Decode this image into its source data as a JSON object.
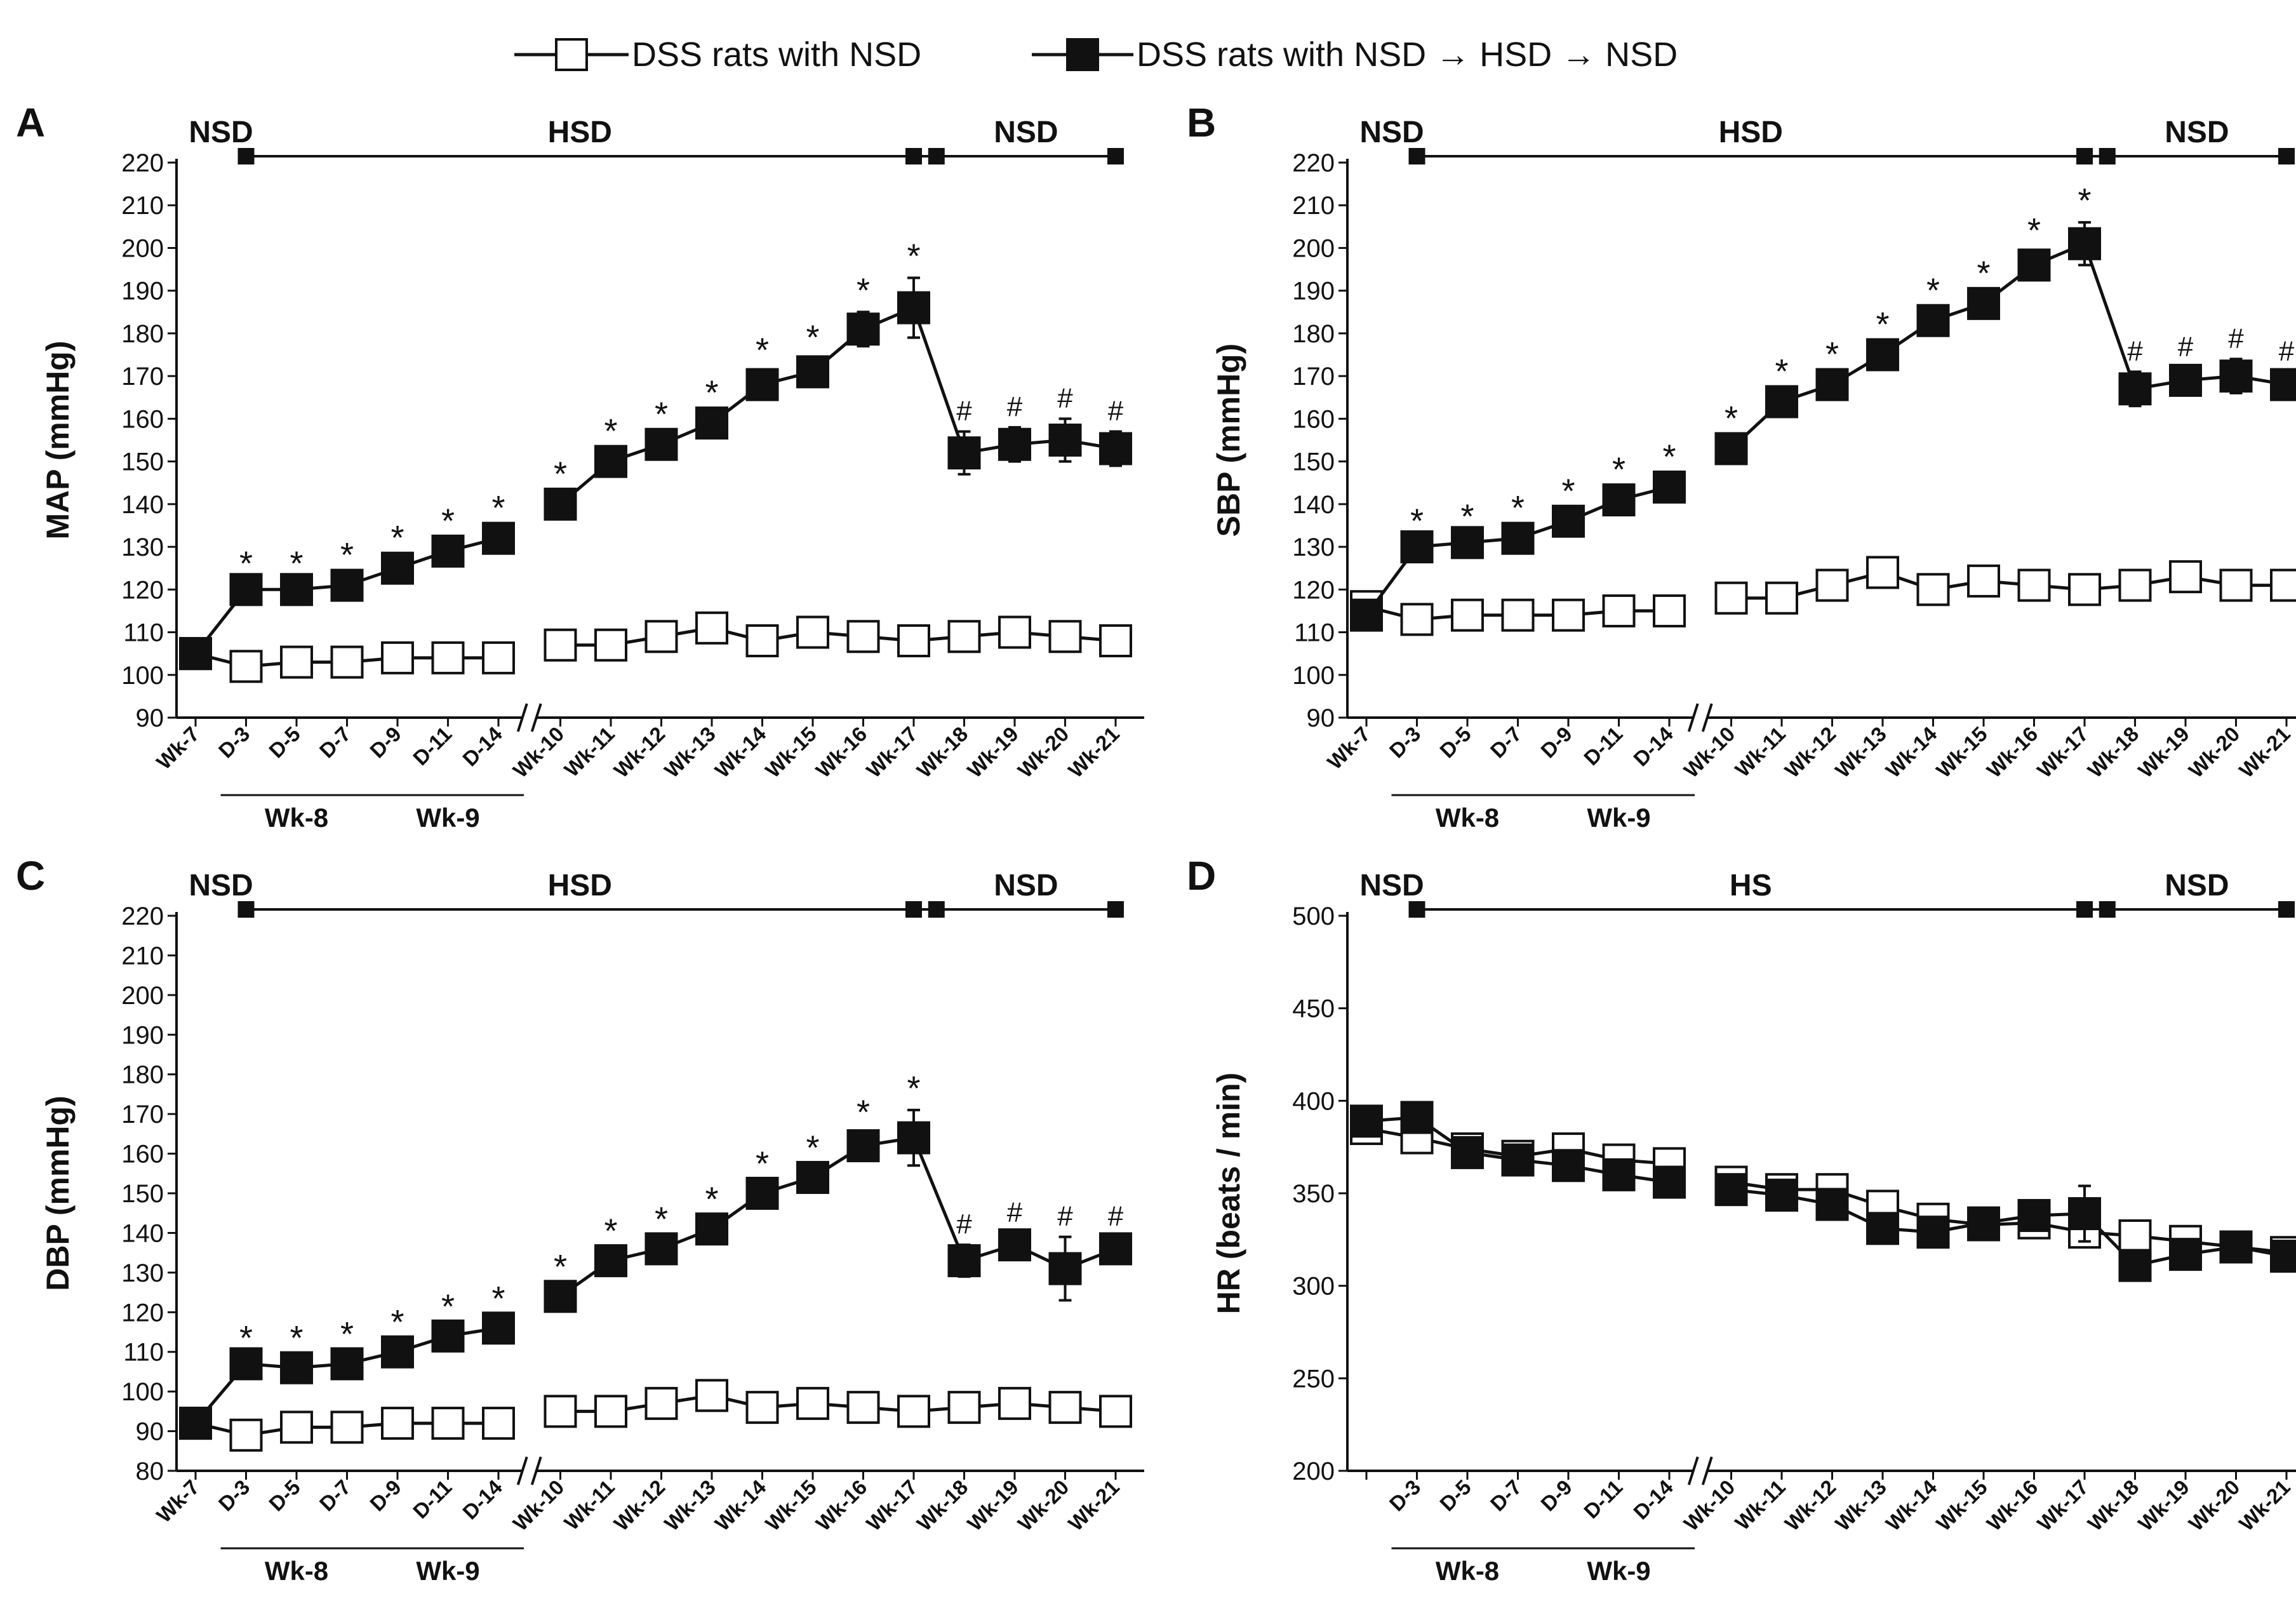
{
  "legend": {
    "normal_diet_label": "DSS rats with NSD",
    "switched_diet_label": "DSS rats with NSD → HSD → NSD"
  },
  "chart_data": [
    {
      "type": "line",
      "panel": "A",
      "ylabel": "MAP (mmHg)",
      "ylim": [
        90,
        220
      ],
      "yticks": [
        90,
        100,
        110,
        120,
        130,
        140,
        150,
        160,
        170,
        180,
        190,
        200,
        210,
        220
      ],
      "categories": [
        "Wk-7",
        "D-3",
        "D-5",
        "D-7",
        "D-9",
        "D-11",
        "D-14",
        "Wk-10",
        "Wk-11",
        "Wk-12",
        "Wk-13",
        "Wk-14",
        "Wk-15",
        "Wk-16",
        "Wk-17",
        "Wk-18",
        "Wk-19",
        "Wk-20",
        "Wk-21"
      ],
      "groups": [
        {
          "label": "Wk-8",
          "from": 1,
          "to": 3
        },
        {
          "label": "Wk-9",
          "from": 4,
          "to": 6
        }
      ],
      "axis_break_after": 6,
      "series": [
        {
          "name": "DSS rats with NSD",
          "values": [
            105,
            102,
            103,
            103,
            104,
            104,
            104,
            107,
            107,
            109,
            111,
            108,
            110,
            109,
            108,
            109,
            110,
            109,
            108
          ],
          "errors": [
            0,
            1,
            1,
            1,
            1,
            1,
            1,
            1,
            1,
            1,
            1,
            1,
            1,
            1,
            1,
            1,
            1,
            1,
            1
          ]
        },
        {
          "name": "DSS rats with NSD → HSD → NSD",
          "values": [
            105,
            120,
            120,
            121,
            125,
            129,
            132,
            140,
            150,
            154,
            159,
            168,
            171,
            181,
            186,
            152,
            154,
            155,
            153
          ],
          "errors": [
            0,
            1,
            1,
            2,
            2,
            2,
            2,
            2,
            2,
            2,
            2,
            3,
            3,
            4,
            7,
            5,
            4,
            5,
            4
          ]
        }
      ],
      "significance": [
        "",
        "*",
        "*",
        "*",
        "*",
        "*",
        "*",
        "*",
        "*",
        "*",
        "*",
        "*",
        "*",
        "*",
        "*",
        "#",
        "#",
        "#",
        "#"
      ],
      "diet_phases": [
        {
          "label": "NSD"
        },
        {
          "label": "HSD"
        },
        {
          "label": "NSD"
        }
      ]
    },
    {
      "type": "line",
      "panel": "B",
      "ylabel": "SBP (mmHg)",
      "ylim": [
        90,
        220
      ],
      "yticks": [
        90,
        100,
        110,
        120,
        130,
        140,
        150,
        160,
        170,
        180,
        190,
        200,
        210,
        220
      ],
      "categories": [
        "Wk-7",
        "D-3",
        "D-5",
        "D-7",
        "D-9",
        "D-11",
        "D-14",
        "Wk-10",
        "Wk-11",
        "Wk-12",
        "Wk-13",
        "Wk-14",
        "Wk-15",
        "Wk-16",
        "Wk-17",
        "Wk-18",
        "Wk-19",
        "Wk-20",
        "Wk-21"
      ],
      "groups": [
        {
          "label": "Wk-8",
          "from": 1,
          "to": 3
        },
        {
          "label": "Wk-9",
          "from": 4,
          "to": 6
        }
      ],
      "axis_break_after": 6,
      "series": [
        {
          "name": "DSS rats with NSD",
          "values": [
            116,
            113,
            114,
            114,
            114,
            115,
            115,
            118,
            118,
            121,
            124,
            120,
            122,
            121,
            120,
            121,
            123,
            121,
            121
          ],
          "errors": [
            1,
            1,
            1,
            1,
            1,
            1,
            1,
            1,
            1,
            1,
            1,
            1,
            1,
            1,
            1,
            1,
            1,
            1,
            1
          ]
        },
        {
          "name": "DSS rats with NSD → HSD → NSD",
          "values": [
            114,
            130,
            131,
            132,
            136,
            141,
            144,
            153,
            164,
            168,
            175,
            183,
            187,
            196,
            201,
            167,
            169,
            170,
            168
          ],
          "errors": [
            1,
            1,
            1,
            2,
            2,
            2,
            2,
            2,
            2,
            2,
            2,
            2,
            2,
            3,
            5,
            4,
            3,
            4,
            3
          ]
        }
      ],
      "significance": [
        "",
        "*",
        "*",
        "*",
        "*",
        "*",
        "*",
        "*",
        "*",
        "*",
        "*",
        "*",
        "*",
        "*",
        "*",
        "#",
        "#",
        "#",
        "#"
      ],
      "diet_phases": [
        {
          "label": "NSD"
        },
        {
          "label": "HSD"
        },
        {
          "label": "NSD"
        }
      ]
    },
    {
      "type": "line",
      "panel": "C",
      "ylabel": "DBP (mmHg)",
      "ylim": [
        80,
        220
      ],
      "yticks": [
        80,
        90,
        100,
        110,
        120,
        130,
        140,
        150,
        160,
        170,
        180,
        190,
        200,
        210,
        220
      ],
      "categories": [
        "Wk-7",
        "D-3",
        "D-5",
        "D-7",
        "D-9",
        "D-11",
        "D-14",
        "Wk-10",
        "Wk-11",
        "Wk-12",
        "Wk-13",
        "Wk-14",
        "Wk-15",
        "Wk-16",
        "Wk-17",
        "Wk-18",
        "Wk-19",
        "Wk-20",
        "Wk-21"
      ],
      "groups": [
        {
          "label": "Wk-8",
          "from": 1,
          "to": 3
        },
        {
          "label": "Wk-9",
          "from": 4,
          "to": 6
        }
      ],
      "axis_break_after": 6,
      "series": [
        {
          "name": "DSS rats with NSD",
          "values": [
            92,
            89,
            91,
            91,
            92,
            92,
            92,
            95,
            95,
            97,
            99,
            96,
            97,
            96,
            95,
            96,
            97,
            96,
            95
          ],
          "errors": [
            1,
            1,
            1,
            1,
            1,
            1,
            1,
            1,
            1,
            1,
            1,
            1,
            1,
            1,
            1,
            1,
            1,
            1,
            1
          ]
        },
        {
          "name": "DSS rats with NSD → HSD → NSD",
          "values": [
            92,
            107,
            106,
            107,
            110,
            114,
            116,
            124,
            133,
            136,
            141,
            150,
            154,
            162,
            164,
            133,
            137,
            131,
            136
          ],
          "errors": [
            0,
            1,
            2,
            2,
            2,
            2,
            2,
            2,
            2,
            2,
            2,
            2,
            2,
            3,
            7,
            4,
            3,
            8,
            3
          ]
        }
      ],
      "significance": [
        "",
        "*",
        "*",
        "*",
        "*",
        "*",
        "*",
        "*",
        "*",
        "*",
        "*",
        "*",
        "*",
        "*",
        "*",
        "#",
        "#",
        "#",
        "#"
      ],
      "diet_phases": [
        {
          "label": "NSD"
        },
        {
          "label": "HSD"
        },
        {
          "label": "NSD"
        }
      ]
    },
    {
      "type": "line",
      "panel": "D",
      "ylabel": "HR (beats / min)",
      "ylim": [
        200,
        500
      ],
      "yticks": [
        200,
        250,
        300,
        350,
        400,
        450,
        500
      ],
      "categories": [
        "",
        "D-3",
        "D-5",
        "D-7",
        "D-9",
        "D-11",
        "D-14",
        "Wk-10",
        "Wk-11",
        "Wk-12",
        "Wk-13",
        "Wk-14",
        "Wk-15",
        "Wk-16",
        "Wk-17",
        "Wk-18",
        "Wk-19",
        "Wk-20",
        "Wk-21"
      ],
      "groups": [
        {
          "label": "Wk-8",
          "from": 1,
          "to": 3
        },
        {
          "label": "Wk-9",
          "from": 4,
          "to": 6
        }
      ],
      "axis_break_after": 6,
      "series": [
        {
          "name": "DSS rats with NSD",
          "values": [
            385,
            380,
            374,
            370,
            374,
            368,
            366,
            356,
            352,
            352,
            343,
            336,
            333,
            334,
            329,
            327,
            324,
            321,
            318
          ],
          "errors": [
            3,
            3,
            3,
            3,
            4,
            4,
            4,
            4,
            4,
            6,
            4,
            3,
            4,
            5,
            5,
            4,
            3,
            3,
            3
          ]
        },
        {
          "name": "DSS rats with NSD → HSD → NSD",
          "values": [
            389,
            391,
            372,
            368,
            365,
            360,
            356,
            352,
            349,
            344,
            331,
            329,
            334,
            338,
            339,
            311,
            317,
            321,
            316
          ],
          "errors": [
            4,
            4,
            4,
            3,
            4,
            4,
            4,
            5,
            4,
            5,
            4,
            5,
            4,
            5,
            15,
            4,
            4,
            4,
            4
          ]
        }
      ],
      "significance": [],
      "diet_phases": [
        {
          "label": "NSD"
        },
        {
          "label": "HS"
        },
        {
          "label": "NSD"
        }
      ]
    }
  ]
}
